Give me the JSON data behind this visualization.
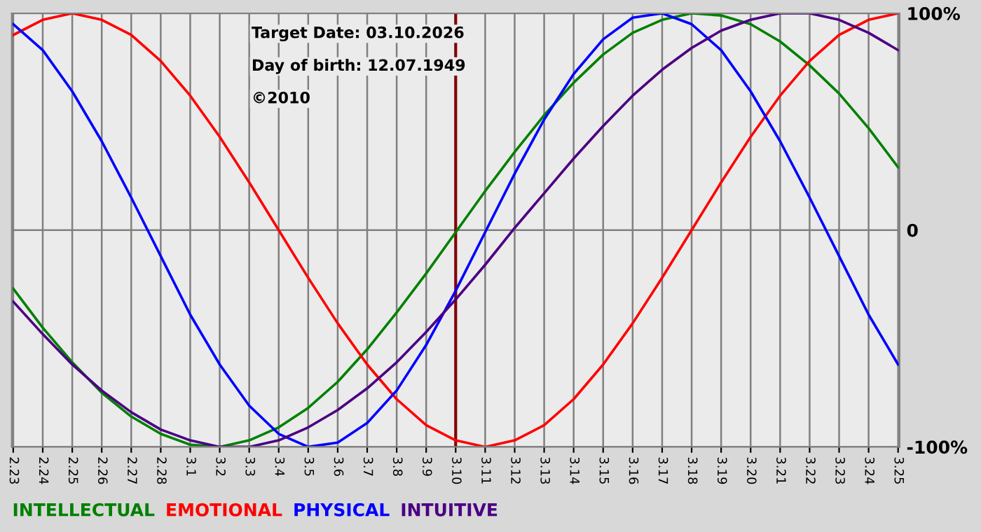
{
  "chart_data": {
    "type": "line",
    "categories": [
      "2.23",
      "2.24",
      "2.25",
      "2.26",
      "2.27",
      "2.28",
      "3.1",
      "3.2",
      "3.3",
      "3.4",
      "3.5",
      "3.6",
      "3.7",
      "3.8",
      "3.9",
      "3.10",
      "3.11",
      "3.12",
      "3.13",
      "3.14",
      "3.15",
      "3.16",
      "3.17",
      "3.18",
      "3.19",
      "3.20",
      "3.21",
      "3.22",
      "3.23",
      "3.24",
      "3.25"
    ],
    "series": [
      {
        "name": "INTELLECTUAL",
        "color": "#008000",
        "values": [
          -27,
          -45,
          -61,
          -75,
          -86,
          -94,
          -99,
          -100,
          -97,
          -91,
          -82,
          -70,
          -55,
          -38,
          -20,
          -1,
          18,
          36,
          53,
          68,
          81,
          91,
          97,
          100,
          99,
          95,
          87,
          76,
          63,
          47,
          29
        ]
      },
      {
        "name": "EMOTIONAL",
        "color": "#ff0000",
        "values": [
          90,
          97,
          100,
          97,
          90,
          78,
          62,
          43,
          22,
          0,
          -22,
          -43,
          -62,
          -78,
          -90,
          -97,
          -100,
          -97,
          -90,
          -78,
          -62,
          -43,
          -22,
          0,
          22,
          43,
          62,
          78,
          90,
          97,
          100
        ]
      },
      {
        "name": "PHYSICAL",
        "color": "#0000ff",
        "values": [
          95,
          83,
          64,
          41,
          15,
          -12,
          -39,
          -62,
          -81,
          -94,
          -100,
          -98,
          -89,
          -74,
          -53,
          -28,
          -1,
          26,
          51,
          72,
          88,
          98,
          100,
          95,
          83,
          64,
          41,
          15,
          -12,
          -39,
          -62
        ]
      },
      {
        "name": "INTUITIVE",
        "color": "#4b0082",
        "values": [
          -33,
          -48,
          -62,
          -74,
          -84,
          -92,
          -97,
          -100,
          -100,
          -97,
          -91,
          -83,
          -73,
          -61,
          -47,
          -32,
          -16,
          1,
          17,
          33,
          48,
          62,
          74,
          84,
          92,
          97,
          100,
          100,
          97,
          91,
          83
        ]
      }
    ],
    "ylim": [
      -100,
      100
    ],
    "yticks": [
      {
        "value": 100,
        "label": "100%"
      },
      0,
      {
        "value": -100,
        "label": "-100%"
      }
    ],
    "ref_lines": [
      {
        "axis": "x",
        "value": "3.10",
        "color": "#800000"
      }
    ],
    "annotations": [
      "Target Date: 03.10.2026",
      "Day of birth: 12.07.1949",
      "©2010"
    ],
    "grid": true,
    "legend": "bottom"
  }
}
